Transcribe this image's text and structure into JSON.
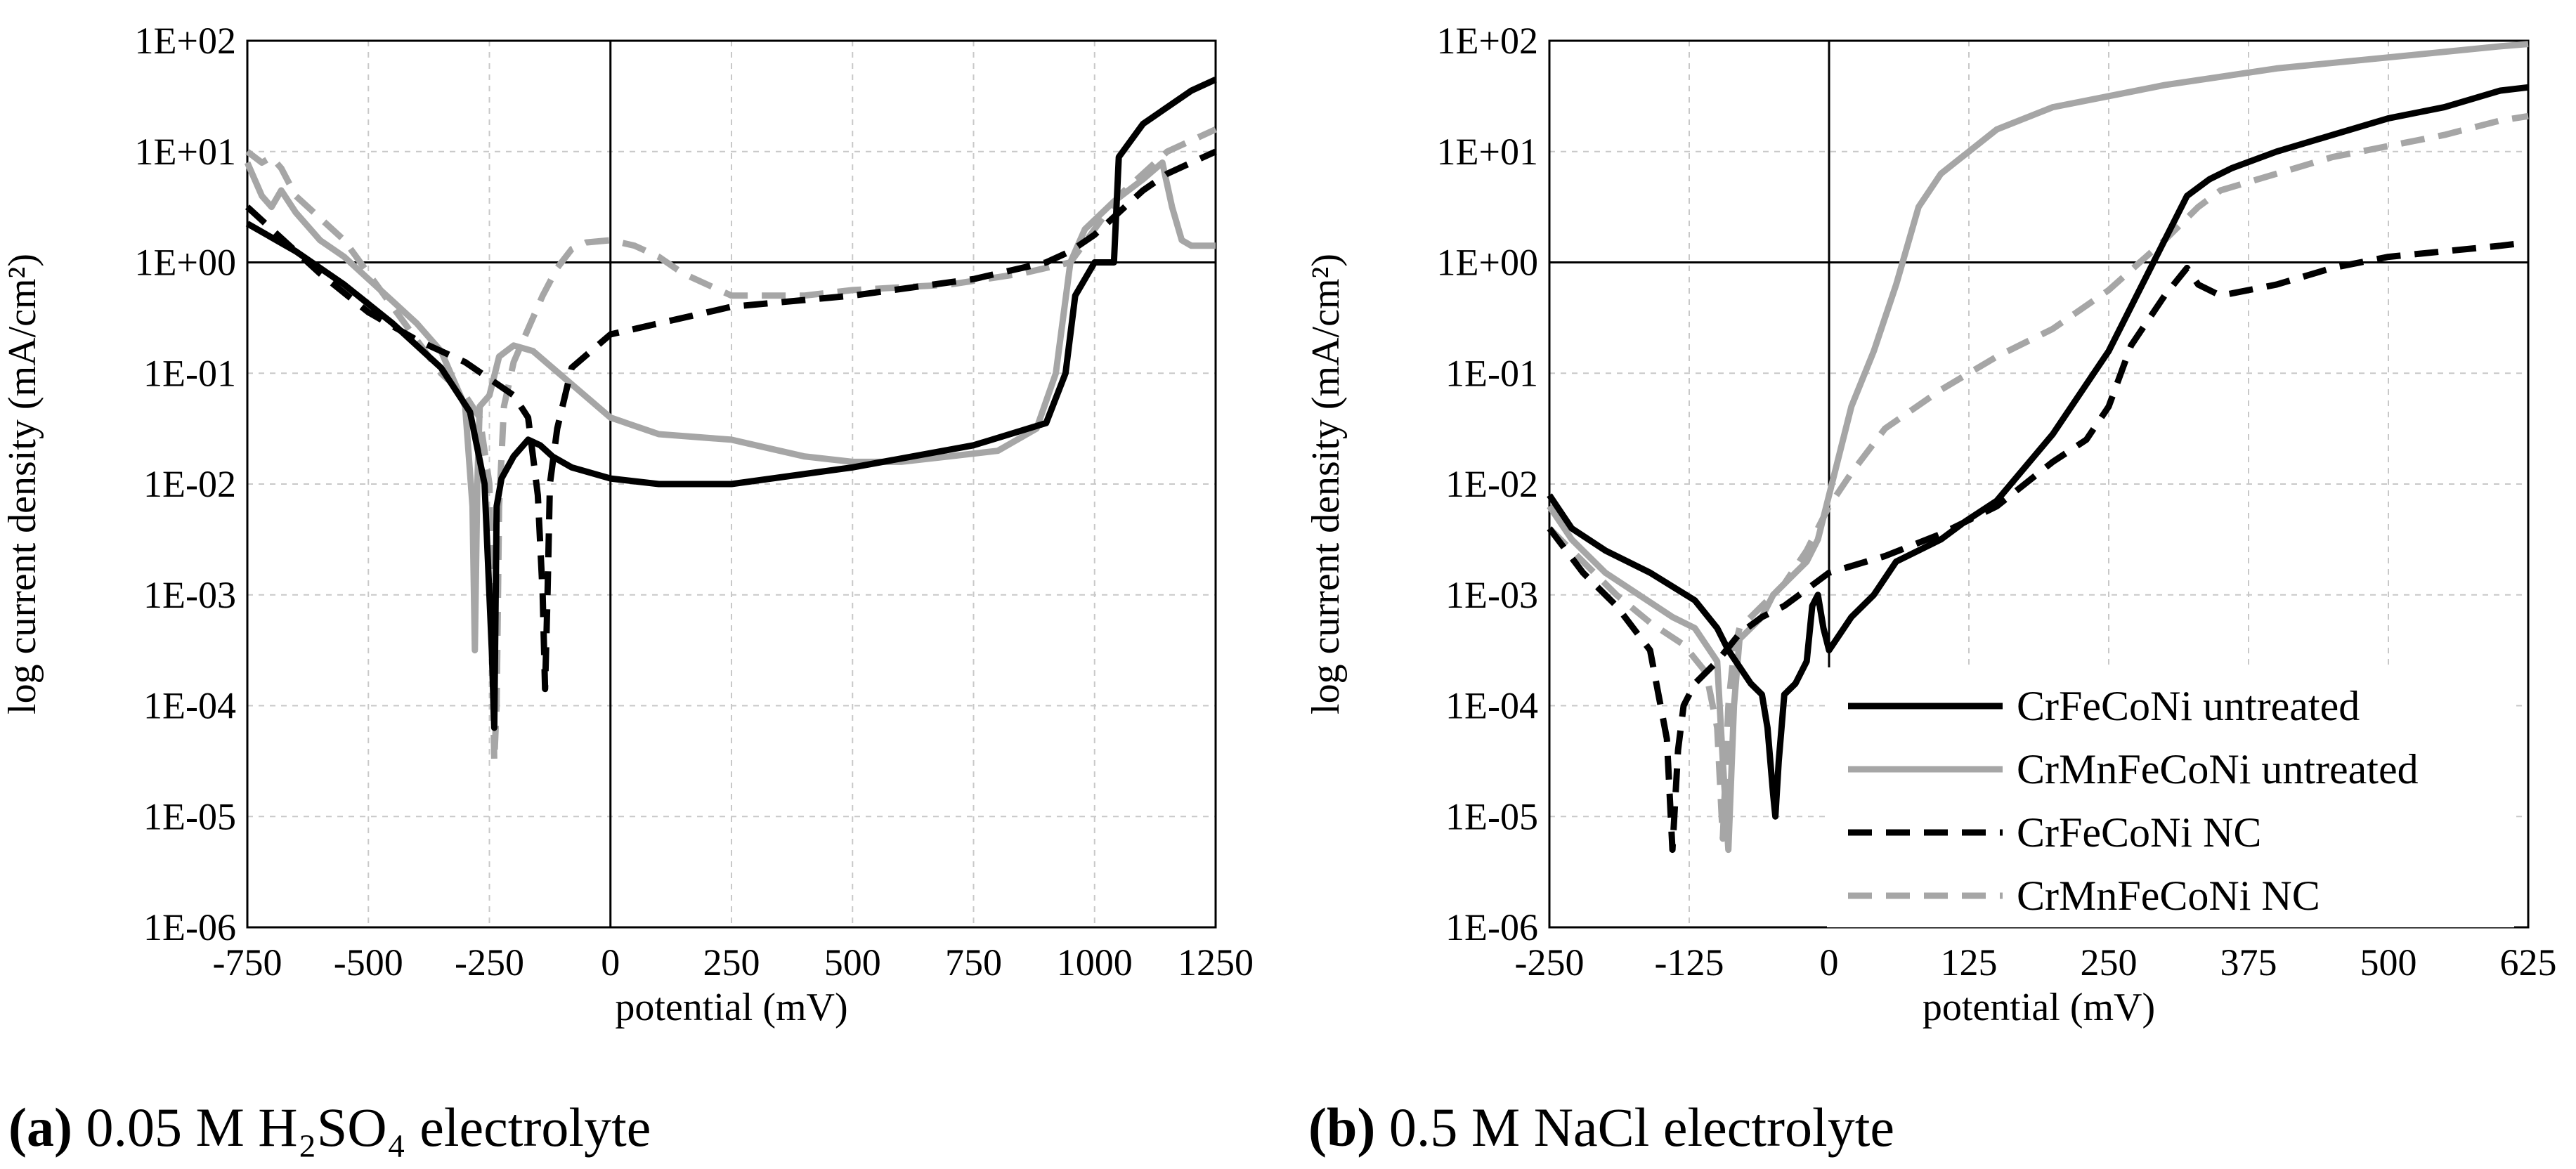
{
  "captions": {
    "a_label": "(a)",
    "a_text": "0.05 M H₂SO₄ electrolyte",
    "b_label": "(b)",
    "b_text": "0.5 M NaCl electrolyte"
  },
  "chart_data": [
    {
      "type": "line",
      "panel": "a",
      "xlabel": "potential (mV)",
      "ylabel": "log current density (mA/cm²)",
      "xlim": [
        -750,
        1250
      ],
      "xticks": [
        -750,
        -500,
        -250,
        0,
        250,
        500,
        750,
        1000,
        1250
      ],
      "ylim_log10": [
        -6,
        2
      ],
      "yticks_log10": [
        2,
        1,
        0,
        -1,
        -2,
        -3,
        -4,
        -5,
        -6
      ],
      "ytick_labels": [
        "1E+02",
        "1E+01",
        "1E+00",
        "1E-01",
        "1E-02",
        "1E-03",
        "1E-04",
        "1E-05",
        "1E-06"
      ],
      "grid": true,
      "series": [
        {
          "name": "CrFeCoNi untreated",
          "color": "#000000",
          "dash": "solid",
          "x": [
            -750,
            -650,
            -550,
            -450,
            -350,
            -290,
            -260,
            -245,
            -240,
            -235,
            -225,
            -200,
            -170,
            -145,
            -120,
            -80,
            -40,
            0,
            100,
            250,
            500,
            750,
            900,
            940,
            960,
            1000,
            1040,
            1050,
            1100,
            1200,
            1250
          ],
          "y": [
            0.35,
            0.1,
            -0.2,
            -0.55,
            -0.95,
            -1.35,
            -2.0,
            -3.5,
            -4.2,
            -2.2,
            -1.95,
            -1.75,
            -1.6,
            -1.65,
            -1.75,
            -1.85,
            -1.9,
            -1.95,
            -2.0,
            -2.0,
            -1.85,
            -1.65,
            -1.45,
            -1.0,
            -0.3,
            0.0,
            0.0,
            0.95,
            1.25,
            1.55,
            1.65
          ]
        },
        {
          "name": "CrMnFeCoNi untreated",
          "color": "#a6a6a6",
          "dash": "solid",
          "x": [
            -750,
            -720,
            -700,
            -680,
            -650,
            -600,
            -550,
            -500,
            -450,
            -400,
            -350,
            -300,
            -285,
            -280,
            -275,
            -270,
            -250,
            -230,
            -200,
            -160,
            -120,
            -80,
            -40,
            0,
            100,
            250,
            400,
            500,
            600,
            700,
            800,
            880,
            920,
            950,
            980,
            1040,
            1100,
            1140,
            1160,
            1180,
            1200,
            1250
          ],
          "y": [
            0.9,
            0.6,
            0.5,
            0.65,
            0.45,
            0.2,
            0.05,
            -0.15,
            -0.35,
            -0.55,
            -0.8,
            -1.3,
            -2.2,
            -3.5,
            -2.0,
            -1.3,
            -1.2,
            -0.85,
            -0.75,
            -0.8,
            -0.95,
            -1.1,
            -1.25,
            -1.4,
            -1.55,
            -1.6,
            -1.75,
            -1.8,
            -1.8,
            -1.75,
            -1.7,
            -1.5,
            -1.0,
            0.0,
            0.3,
            0.55,
            0.75,
            0.9,
            0.5,
            0.2,
            0.15,
            0.15
          ]
        },
        {
          "name": "CrFeCoNi NC",
          "color": "#000000",
          "dash": "dashed",
          "x": [
            -750,
            -700,
            -650,
            -600,
            -500,
            -400,
            -300,
            -250,
            -200,
            -170,
            -150,
            -140,
            -135,
            -130,
            -125,
            -110,
            -80,
            -40,
            0,
            100,
            250,
            500,
            750,
            900,
            950,
            1000,
            1050,
            1100,
            1150,
            1200,
            1250
          ],
          "y": [
            0.5,
            0.3,
            0.1,
            -0.1,
            -0.45,
            -0.7,
            -0.9,
            -1.05,
            -1.2,
            -1.4,
            -2.1,
            -3.0,
            -3.85,
            -3.0,
            -2.0,
            -1.5,
            -0.95,
            -0.8,
            -0.65,
            -0.55,
            -0.4,
            -0.3,
            -0.15,
            0.0,
            0.1,
            0.25,
            0.45,
            0.65,
            0.8,
            0.9,
            1.0
          ]
        },
        {
          "name": "CrMnFeCoNi NC",
          "color": "#a6a6a6",
          "dash": "dashed",
          "x": [
            -750,
            -720,
            -700,
            -680,
            -650,
            -600,
            -550,
            -500,
            -450,
            -400,
            -350,
            -300,
            -270,
            -250,
            -240,
            -235,
            -230,
            -220,
            -200,
            -170,
            -140,
            -110,
            -80,
            -50,
            0,
            50,
            100,
            150,
            250,
            400,
            500,
            700,
            850,
            950,
            1000,
            1050,
            1100,
            1150,
            1200,
            1250
          ],
          "y": [
            1.0,
            0.9,
            0.95,
            0.85,
            0.6,
            0.4,
            0.2,
            -0.1,
            -0.4,
            -0.7,
            -1.0,
            -1.2,
            -1.4,
            -2.0,
            -4.5,
            -4.0,
            -2.2,
            -1.3,
            -0.9,
            -0.6,
            -0.3,
            -0.05,
            0.12,
            0.18,
            0.2,
            0.15,
            0.05,
            -0.1,
            -0.3,
            -0.3,
            -0.25,
            -0.2,
            -0.1,
            0.0,
            0.3,
            0.6,
            0.8,
            1.0,
            1.1,
            1.2
          ]
        }
      ]
    },
    {
      "type": "line",
      "panel": "b",
      "xlabel": "potential (mV)",
      "ylabel": "log current density (mA/cm²)",
      "xlim": [
        -250,
        625
      ],
      "xticks": [
        -250,
        -125,
        0,
        125,
        250,
        375,
        500,
        625
      ],
      "ylim_log10": [
        -6,
        2
      ],
      "yticks_log10": [
        2,
        1,
        0,
        -1,
        -2,
        -3,
        -4,
        -5,
        -6
      ],
      "ytick_labels": [
        "1E+02",
        "1E+01",
        "1E+00",
        "1E-01",
        "1E-02",
        "1E-03",
        "1E-04",
        "1E-05",
        "1E-06"
      ],
      "grid": true,
      "legend": "bottom-right",
      "series": [
        {
          "name": "CrFeCoNi untreated",
          "color": "#000000",
          "dash": "solid",
          "x": [
            -250,
            -230,
            -200,
            -160,
            -120,
            -100,
            -90,
            -80,
            -70,
            -60,
            -55,
            -50,
            -48,
            -45,
            -40,
            -30,
            -20,
            -15,
            -10,
            -5,
            0,
            20,
            40,
            60,
            80,
            100,
            120,
            150,
            200,
            250,
            300,
            320,
            340,
            360,
            400,
            450,
            500,
            550,
            600,
            625
          ],
          "y": [
            -2.1,
            -2.4,
            -2.6,
            -2.8,
            -3.05,
            -3.3,
            -3.5,
            -3.65,
            -3.8,
            -3.9,
            -4.2,
            -4.8,
            -5.0,
            -4.5,
            -3.9,
            -3.8,
            -3.6,
            -3.1,
            -3.0,
            -3.3,
            -3.5,
            -3.2,
            -3.0,
            -2.7,
            -2.6,
            -2.5,
            -2.35,
            -2.15,
            -1.55,
            -0.8,
            0.2,
            0.6,
            0.75,
            0.85,
            1.0,
            1.15,
            1.3,
            1.4,
            1.55,
            1.58
          ]
        },
        {
          "name": "CrMnFeCoNi untreated",
          "color": "#a6a6a6",
          "dash": "solid",
          "x": [
            -250,
            -230,
            -200,
            -170,
            -140,
            -120,
            -100,
            -95,
            -90,
            -85,
            -80,
            -70,
            -60,
            -50,
            -40,
            -30,
            -20,
            -10,
            0,
            10,
            20,
            40,
            60,
            80,
            100,
            150,
            200,
            300,
            400,
            500,
            600,
            625
          ],
          "y": [
            -2.2,
            -2.5,
            -2.8,
            -3.0,
            -3.2,
            -3.3,
            -3.6,
            -4.5,
            -5.3,
            -4.0,
            -3.4,
            -3.3,
            -3.2,
            -3.0,
            -2.9,
            -2.8,
            -2.7,
            -2.5,
            -2.1,
            -1.7,
            -1.3,
            -0.8,
            -0.2,
            0.5,
            0.8,
            1.2,
            1.4,
            1.6,
            1.75,
            1.85,
            1.95,
            1.97
          ]
        },
        {
          "name": "CrFeCoNi NC",
          "color": "#000000",
          "dash": "dashed",
          "x": [
            -250,
            -220,
            -190,
            -160,
            -145,
            -140,
            -135,
            -130,
            -120,
            -100,
            -80,
            -60,
            -40,
            -20,
            0,
            50,
            100,
            150,
            200,
            230,
            250,
            270,
            300,
            320,
            330,
            350,
            400,
            450,
            500,
            550,
            600,
            625
          ],
          "y": [
            -2.4,
            -2.8,
            -3.1,
            -3.5,
            -4.3,
            -5.3,
            -4.4,
            -4.0,
            -3.8,
            -3.6,
            -3.35,
            -3.2,
            -3.1,
            -2.95,
            -2.8,
            -2.65,
            -2.45,
            -2.2,
            -1.8,
            -1.6,
            -1.3,
            -0.75,
            -0.3,
            -0.05,
            -0.2,
            -0.3,
            -0.2,
            -0.05,
            0.05,
            0.1,
            0.15,
            0.18
          ]
        },
        {
          "name": "CrMnFeCoNi NC",
          "color": "#a6a6a6",
          "dash": "dashed",
          "x": [
            -250,
            -220,
            -190,
            -160,
            -130,
            -110,
            -100,
            -95,
            -90,
            -85,
            -80,
            -60,
            -40,
            -20,
            0,
            20,
            50,
            100,
            150,
            200,
            250,
            300,
            330,
            350,
            400,
            450,
            500,
            550,
            600,
            625
          ],
          "y": [
            -2.4,
            -2.7,
            -3.0,
            -3.25,
            -3.45,
            -3.7,
            -4.2,
            -5.2,
            -4.0,
            -3.5,
            -3.3,
            -3.1,
            -2.9,
            -2.6,
            -2.2,
            -1.9,
            -1.5,
            -1.15,
            -0.85,
            -0.6,
            -0.25,
            0.2,
            0.5,
            0.65,
            0.8,
            0.95,
            1.05,
            1.15,
            1.28,
            1.32
          ]
        }
      ]
    }
  ]
}
